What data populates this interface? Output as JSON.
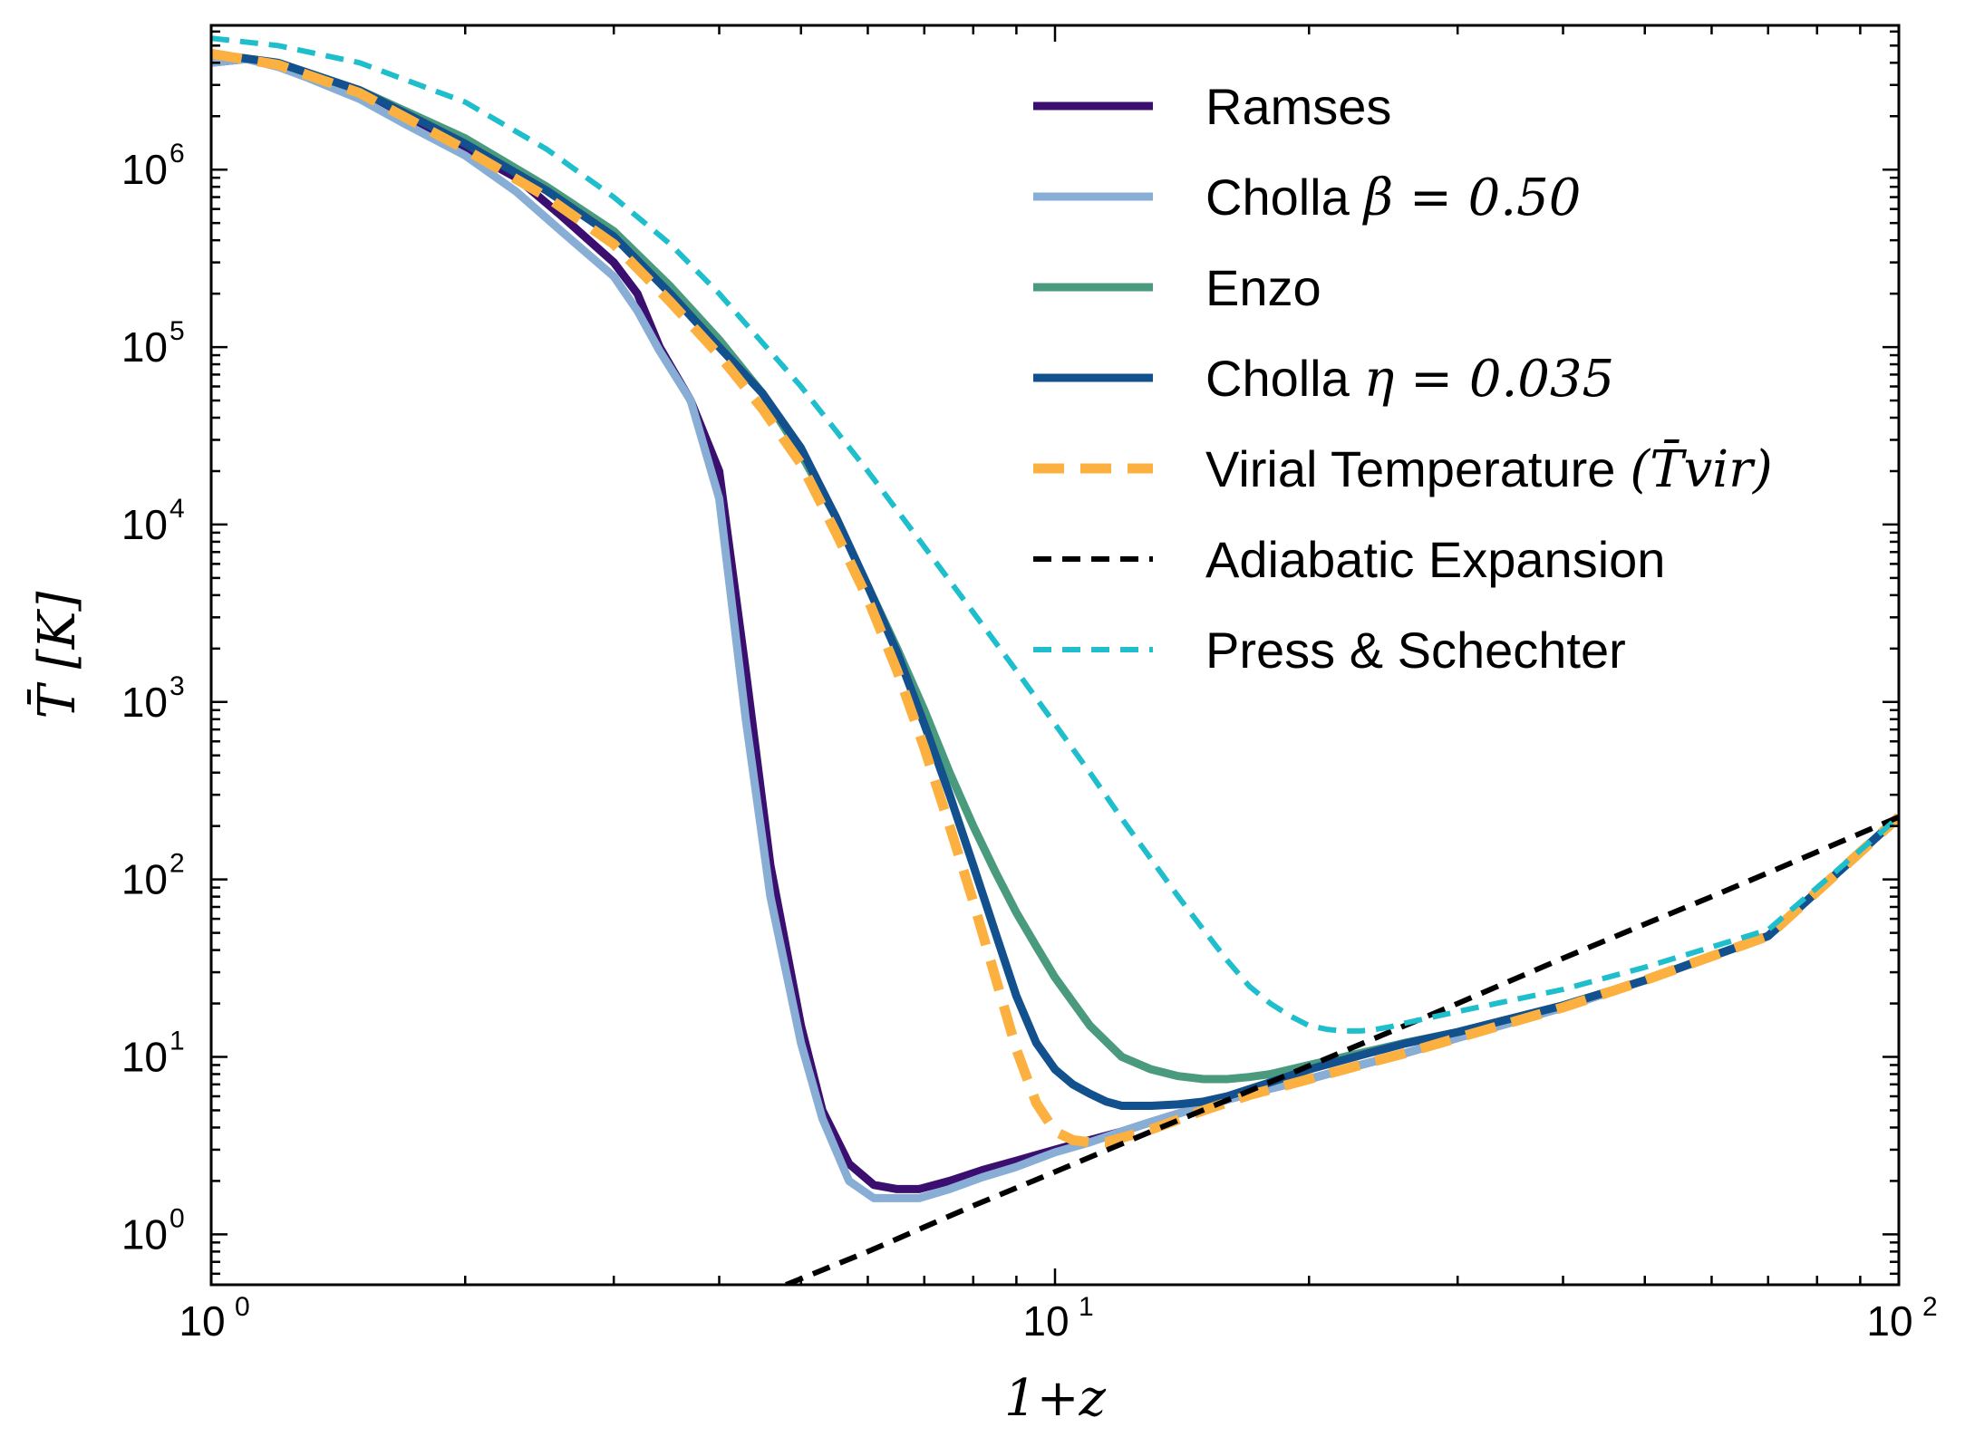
{
  "chart_data": {
    "type": "line",
    "title": "",
    "xlabel": "1+z",
    "ylabel": "T̄ [K]",
    "xscale": "log",
    "yscale": "log",
    "xlim": [
      1,
      100
    ],
    "ylim": [
      0.52,
      6500000
    ],
    "x_ticks": [
      {
        "value": 1,
        "mantissa": "10",
        "exp": "0"
      },
      {
        "value": 10,
        "mantissa": "10",
        "exp": "1"
      },
      {
        "value": 100,
        "mantissa": "10",
        "exp": "2"
      }
    ],
    "y_ticks": [
      {
        "value": 1,
        "mantissa": "10",
        "exp": "0"
      },
      {
        "value": 10,
        "mantissa": "10",
        "exp": "1"
      },
      {
        "value": 100,
        "mantissa": "10",
        "exp": "2"
      },
      {
        "value": 1000,
        "mantissa": "10",
        "exp": "3"
      },
      {
        "value": 10000,
        "mantissa": "10",
        "exp": "4"
      },
      {
        "value": 100000,
        "mantissa": "10",
        "exp": "5"
      },
      {
        "value": 1000000,
        "mantissa": "10",
        "exp": "6"
      }
    ],
    "grid": false,
    "legend_position": "top-right",
    "series": [
      {
        "name": "Ramses",
        "color": "#3b0f70",
        "style": "solid",
        "x": [
          1.0,
          1.1,
          1.2,
          1.3,
          1.5,
          1.7,
          2.0,
          2.3,
          2.6,
          3.0,
          3.2,
          3.4,
          3.7,
          4.0,
          4.3,
          4.6,
          5.0,
          5.3,
          5.7,
          6.1,
          6.5,
          6.9,
          7.5,
          8.2,
          9.0,
          10.0,
          11.0,
          12.0,
          13.0,
          15.0,
          17.0,
          20.0,
          23.0,
          26.0,
          30.0,
          40.0,
          50.0,
          70.0,
          100.0
        ],
        "y": [
          4000000,
          4200000,
          3900000,
          3500000,
          2700000,
          2000000,
          1300000,
          900000,
          550000,
          300000,
          200000,
          100000,
          50000,
          20000,
          1500,
          120,
          15,
          5,
          2.5,
          1.9,
          1.8,
          1.8,
          2.0,
          2.3,
          2.6,
          3.0,
          3.4,
          3.8,
          4.3,
          5.3,
          6.2,
          7.5,
          9.0,
          10.5,
          12.8,
          19,
          27,
          48,
          225
        ]
      },
      {
        "name": "Cholla",
        "name_math": "β = 0.50",
        "color": "#88aed5",
        "style": "solid",
        "x": [
          1.0,
          1.1,
          1.2,
          1.3,
          1.5,
          1.7,
          2.0,
          2.3,
          2.6,
          3.0,
          3.2,
          3.4,
          3.7,
          4.0,
          4.3,
          4.6,
          5.0,
          5.3,
          5.7,
          6.1,
          6.5,
          6.9,
          7.5,
          8.2,
          9.0,
          10.0,
          11.0,
          12.0,
          13.0,
          15.0,
          17.0,
          20.0,
          23.0,
          26.0,
          30.0,
          40.0,
          50.0,
          70.0,
          100.0
        ],
        "y": [
          4000000,
          4200000,
          3800000,
          3300000,
          2500000,
          1800000,
          1200000,
          750000,
          450000,
          250000,
          160000,
          95000,
          50000,
          14000,
          800,
          80,
          12,
          4.5,
          2.0,
          1.6,
          1.6,
          1.6,
          1.8,
          2.1,
          2.4,
          2.9,
          3.3,
          3.8,
          4.3,
          5.3,
          6.2,
          7.5,
          9.0,
          10.5,
          12.8,
          19,
          27,
          48,
          225
        ]
      },
      {
        "name": "Enzo",
        "color": "#4a9a7e",
        "style": "solid",
        "x": [
          1.0,
          1.2,
          1.5,
          2.0,
          2.5,
          3.0,
          3.5,
          4.0,
          4.5,
          5.0,
          5.5,
          6.0,
          6.5,
          7.0,
          7.5,
          8.0,
          8.5,
          9.0,
          9.5,
          10.0,
          11.0,
          12.0,
          13.0,
          14.0,
          15.0,
          16.0,
          17.0,
          18.0,
          20.0,
          23.0,
          26.0,
          30.0,
          40.0,
          50.0,
          70.0,
          100.0
        ],
        "y": [
          4500000,
          4000000,
          2800000,
          1500000,
          800000,
          450000,
          220000,
          110000,
          55000,
          25000,
          11000,
          4500,
          2000,
          900,
          400,
          200,
          110,
          65,
          42,
          28,
          15,
          10,
          8.5,
          7.8,
          7.5,
          7.5,
          7.7,
          8.0,
          9.0,
          10.5,
          12.0,
          13.8,
          19.5,
          27,
          48,
          225
        ]
      },
      {
        "name": "Cholla",
        "name_math": "η = 0.035",
        "color": "#13508e",
        "style": "solid",
        "x": [
          1.0,
          1.2,
          1.5,
          2.0,
          2.5,
          3.0,
          3.5,
          4.0,
          4.5,
          5.0,
          5.5,
          6.0,
          6.5,
          7.0,
          7.5,
          8.0,
          8.5,
          9.0,
          9.5,
          10.0,
          10.5,
          11.0,
          11.5,
          12.0,
          13.0,
          14.0,
          15.0,
          16.0,
          18.0,
          20.0,
          23.0,
          26.0,
          30.0,
          40.0,
          50.0,
          70.0,
          100.0
        ],
        "y": [
          4500000,
          4000000,
          2800000,
          1400000,
          760000,
          420000,
          200000,
          100000,
          55000,
          27000,
          11000,
          4500,
          1900,
          750,
          300,
          120,
          50,
          22,
          12,
          8.5,
          7.0,
          6.2,
          5.6,
          5.3,
          5.3,
          5.4,
          5.6,
          6.0,
          7.2,
          8.5,
          10.2,
          11.9,
          13.8,
          19.5,
          27,
          48,
          225
        ]
      },
      {
        "name": "Virial Temperature",
        "name_math": "(T̄vir)",
        "color": "#fbb040",
        "style": "dashed-thick",
        "x": [
          1.0,
          1.2,
          1.5,
          2.0,
          2.5,
          3.0,
          3.5,
          4.0,
          4.5,
          5.0,
          5.5,
          6.0,
          6.5,
          7.0,
          7.5,
          8.0,
          8.5,
          9.0,
          9.5,
          10.0,
          10.5,
          11.0,
          11.5,
          12.0,
          13.0,
          15.0,
          17.0,
          20.0,
          23.0,
          26.0,
          30.0,
          40.0,
          50.0,
          70.0,
          100.0
        ],
        "y": [
          4500000,
          3900000,
          2700000,
          1300000,
          700000,
          380000,
          180000,
          90000,
          45000,
          22000,
          9000,
          3800,
          1500,
          550,
          200,
          75,
          28,
          11,
          5.5,
          3.8,
          3.4,
          3.3,
          3.3,
          3.5,
          3.9,
          5.0,
          6.1,
          7.5,
          9.0,
          10.5,
          12.8,
          19,
          27,
          48,
          225
        ]
      },
      {
        "name": "Adiabatic Expansion",
        "color": "#000000",
        "style": "dashed",
        "x": [
          4.8,
          6.0,
          8.0,
          10.0,
          13.0,
          16.0,
          20.0,
          25.0,
          30.0,
          40.0,
          50.0,
          60.0,
          70.0,
          80.0,
          100.0
        ],
        "y": [
          0.52,
          0.8,
          1.45,
          2.25,
          3.8,
          5.7,
          8.9,
          13.9,
          20,
          36,
          56,
          80,
          109,
          143,
          225
        ]
      },
      {
        "name": "Press & Schechter",
        "color": "#1fbecc",
        "style": "dashed",
        "x": [
          1.0,
          1.2,
          1.5,
          2.0,
          2.5,
          3.0,
          3.5,
          4.0,
          5.0,
          6.0,
          7.0,
          8.0,
          9.0,
          10.0,
          11.0,
          12.0,
          13.0,
          14.0,
          15.0,
          16.0,
          17.0,
          18.0,
          19.0,
          20.0,
          21.0,
          22.0,
          23.0,
          24.0,
          25.0,
          26.0,
          30.0,
          40.0,
          50.0,
          70.0,
          100.0
        ],
        "y": [
          5500000,
          5000000,
          4000000,
          2400000,
          1300000,
          700000,
          380000,
          200000,
          60000,
          20000,
          7500,
          3200,
          1500,
          750,
          400,
          220,
          130,
          80,
          52,
          35,
          25,
          20,
          17,
          15,
          14.3,
          14,
          14,
          14.3,
          14.8,
          15.5,
          18,
          24,
          32,
          52,
          225
        ]
      }
    ]
  }
}
